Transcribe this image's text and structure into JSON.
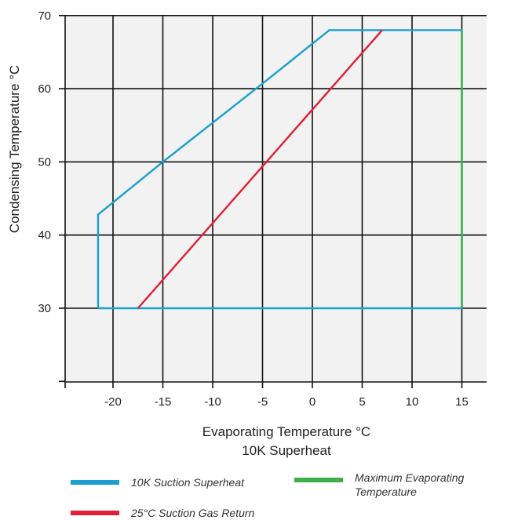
{
  "chart_data": {
    "type": "line",
    "xlabel": "Evaporating Temperature °C",
    "xlabel_sub": "10K Superheat",
    "ylabel": "Condensing Temperature °C",
    "xlim": [
      -25,
      20
    ],
    "ylim": [
      20,
      70
    ],
    "x_ticks": [
      -20,
      -15,
      -10,
      -5,
      0,
      5,
      10,
      15
    ],
    "y_ticks": [
      30,
      40,
      50,
      60,
      70
    ],
    "grid": true,
    "background": "#f2f2f2",
    "legend_position": "bottom",
    "series": [
      {
        "name": "10K Suction Superheat",
        "color": "#1a9fce",
        "x": [
          -21.5,
          -21.5,
          -15,
          -5,
          1.7,
          15,
          15,
          -21.5
        ],
        "y": [
          30,
          42.8,
          50,
          60.7,
          68,
          68,
          30,
          30
        ]
      },
      {
        "name": "25°C Suction Gas Return",
        "color": "#e01e37",
        "x": [
          -17.5,
          7
        ],
        "y": [
          30,
          68
        ]
      },
      {
        "name": "Maximum Evaporating Temperature",
        "color": "#3fae49",
        "x": [
          15,
          15
        ],
        "y": [
          30,
          68
        ]
      }
    ]
  },
  "legend": {
    "items": [
      {
        "label": "10K Suction Superheat",
        "color": "#1a9fce"
      },
      {
        "label": "25°C Suction Gas Return",
        "color": "#e01e37"
      },
      {
        "label_line1": "Maximum Evaporating",
        "label_line2": "Temperature",
        "color": "#3fae49"
      }
    ]
  }
}
